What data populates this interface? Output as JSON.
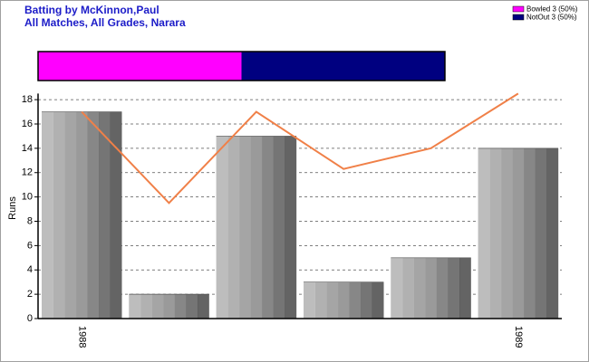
{
  "chart_data": [
    {
      "type": "stacked-bar",
      "series": [
        {
          "name": "Bowled 3 (50%)",
          "color": "#ff00ff",
          "values": [
            3
          ]
        },
        {
          "name": "NotOut 3 (50%)",
          "color": "#000080",
          "values": [
            3
          ]
        }
      ]
    },
    {
      "type": "bar",
      "title": "Batting by McKinnon,Paul",
      "subtitle": "All Matches, All Grades, Narara",
      "ylabel": "Runs",
      "categories": [
        "1988",
        null,
        null,
        null,
        null,
        "1989"
      ],
      "series": [
        {
          "type": "bar",
          "color": "#9a9a9a",
          "values": [
            17,
            2,
            15,
            3,
            5,
            14
          ]
        },
        {
          "type": "line",
          "color": "#f08048",
          "values": [
            17,
            9.5,
            17,
            12.3,
            14,
            18.5
          ]
        }
      ],
      "ylim": [
        0,
        18.5
      ],
      "yticks": [
        0,
        2,
        4,
        6,
        8,
        10,
        12,
        14,
        16,
        18
      ],
      "grid": true
    }
  ]
}
